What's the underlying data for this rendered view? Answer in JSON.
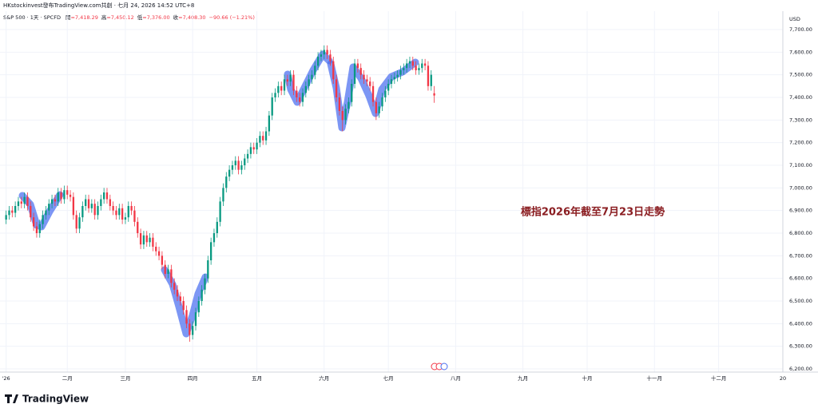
{
  "header": "HKstockinvest發布TradingView.com共創 · 七月 24, 2026 14:52 UTC+8",
  "branding": "TradingView",
  "chart_data": {
    "type": "candlestick",
    "symbol": "S&P 500 · 1天 · SPCFD",
    "legend": [
      {
        "label": "開",
        "value": "=7,418.29"
      },
      {
        "label": "高",
        "value": "=7,450.12"
      },
      {
        "label": "低",
        "value": "=7,376.00"
      },
      {
        "label": "收",
        "value": "=7,408.30"
      }
    ],
    "change": "−90.66 (−1.21%)",
    "currency": "USD",
    "annotation": "標指2026年截至7月23日走勢",
    "up_color": "#089981",
    "down_color": "#f23645",
    "grid": true,
    "xlim": [
      -2,
      254
    ],
    "xticks": [
      {
        "value": 0,
        "label": "'26"
      },
      {
        "value": 20,
        "label": "二月"
      },
      {
        "value": 39,
        "label": "三月"
      },
      {
        "value": 61,
        "label": "四月"
      },
      {
        "value": 82,
        "label": "五月"
      },
      {
        "value": 104,
        "label": "六月"
      },
      {
        "value": 125,
        "label": "七月"
      },
      {
        "value": 147,
        "label": "八月"
      },
      {
        "value": 169,
        "label": "九月"
      },
      {
        "value": 190,
        "label": "十月"
      },
      {
        "value": 212,
        "label": "十一月"
      },
      {
        "value": 233,
        "label": "十二月"
      },
      {
        "value": 254,
        "label": "20"
      }
    ],
    "ylim": [
      6200,
      7700
    ],
    "yticks": [
      {
        "value": 6200,
        "label": "6,200.00"
      },
      {
        "value": 6300,
        "label": "6,300.00"
      },
      {
        "value": 6400,
        "label": "6,400.00"
      },
      {
        "value": 6500,
        "label": "6,500.00"
      },
      {
        "value": 6600,
        "label": "6,600.00"
      },
      {
        "value": 6700,
        "label": "6,700.00"
      },
      {
        "value": 6800,
        "label": "6,800.00"
      },
      {
        "value": 6900,
        "label": "6,900.00"
      },
      {
        "value": 7000,
        "label": "7,000.00"
      },
      {
        "value": 7100,
        "label": "7,100.00"
      },
      {
        "value": 7200,
        "label": "7,200.00"
      },
      {
        "value": 7300,
        "label": "7,300.00"
      },
      {
        "value": 7400,
        "label": "7,400.00"
      },
      {
        "value": 7500,
        "label": "7,500.00"
      },
      {
        "value": 7600,
        "label": "7,600.00"
      },
      {
        "value": 7700,
        "label": "7,700.00"
      }
    ],
    "open": [
      6860,
      6880,
      6900,
      6890,
      6920,
      6940,
      6930,
      6960,
      6920,
      6870,
      6830,
      6800,
      6840,
      6880,
      6900,
      6930,
      6950,
      6940,
      6980,
      6950,
      6990,
      6970,
      6960,
      6880,
      6820,
      6870,
      6920,
      6950,
      6910,
      6930,
      6880,
      6920,
      6950,
      6980,
      6950,
      6920,
      6900,
      6880,
      6910,
      6860,
      6870,
      6920,
      6900,
      6850,
      6800,
      6750,
      6790,
      6760,
      6780,
      6740,
      6720,
      6700,
      6660,
      6620,
      6640,
      6580,
      6550,
      6520,
      6500,
      6460,
      6400,
      6350,
      6390,
      6450,
      6500,
      6550,
      6600,
      6680,
      6760,
      6800,
      6850,
      6940,
      7000,
      7050,
      7080,
      7100,
      7120,
      7080,
      7100,
      7130,
      7150,
      7180,
      7170,
      7200,
      7230,
      7210,
      7250,
      7320,
      7400,
      7420,
      7450,
      7430,
      7480,
      7470,
      7500,
      7430,
      7400,
      7380,
      7420,
      7450,
      7480,
      7500,
      7540,
      7580,
      7590,
      7610,
      7590,
      7560,
      7480,
      7400,
      7340,
      7300,
      7350,
      7380,
      7460,
      7550,
      7530,
      7500,
      7480,
      7470,
      7450,
      7380,
      7330,
      7360,
      7400,
      7430,
      7460,
      7480,
      7490,
      7500,
      7520,
      7530,
      7550,
      7560,
      7540,
      7520,
      7530,
      7550,
      7540,
      7450,
      7418.29
    ],
    "high": [
      6900,
      6920,
      6920,
      6940,
      6960,
      6960,
      6980,
      6980,
      6940,
      6890,
      6850,
      6860,
      6900,
      6920,
      6950,
      6970,
      6970,
      7000,
      7000,
      7010,
      7010,
      6990,
      6980,
      6900,
      6890,
      6940,
      6970,
      6970,
      6950,
      6950,
      6940,
      6970,
      7000,
      7000,
      6970,
      6940,
      6920,
      6930,
      6930,
      6890,
      6940,
      6940,
      6920,
      6870,
      6820,
      6810,
      6810,
      6800,
      6800,
      6760,
      6740,
      6720,
      6680,
      6660,
      6660,
      6600,
      6570,
      6540,
      6520,
      6480,
      6420,
      6410,
      6470,
      6520,
      6570,
      6620,
      6700,
      6780,
      6820,
      6870,
      6960,
      7020,
      7070,
      7100,
      7120,
      7140,
      7140,
      7120,
      7150,
      7170,
      7200,
      7200,
      7220,
      7250,
      7250,
      7270,
      7340,
      7420,
      7440,
      7470,
      7470,
      7500,
      7500,
      7520,
      7520,
      7450,
      7420,
      7440,
      7470,
      7500,
      7520,
      7560,
      7600,
      7610,
      7630,
      7630,
      7610,
      7580,
      7500,
      7420,
      7360,
      7370,
      7400,
      7480,
      7570,
      7570,
      7550,
      7520,
      7500,
      7490,
      7470,
      7400,
      7380,
      7420,
      7450,
      7480,
      7500,
      7510,
      7520,
      7540,
      7550,
      7570,
      7580,
      7580,
      7560,
      7550,
      7570,
      7570,
      7560,
      7520,
      7450.12
    ],
    "low": [
      6840,
      6860,
      6870,
      6870,
      6900,
      6910,
      6910,
      6900,
      6850,
      6810,
      6780,
      6780,
      6820,
      6860,
      6880,
      6910,
      6920,
      6920,
      6930,
      6930,
      6950,
      6940,
      6860,
      6800,
      6800,
      6850,
      6900,
      6890,
      6890,
      6860,
      6860,
      6900,
      6930,
      6930,
      6900,
      6880,
      6860,
      6860,
      6840,
      6840,
      6850,
      6880,
      6830,
      6780,
      6730,
      6730,
      6740,
      6740,
      6720,
      6700,
      6680,
      6640,
      6600,
      6600,
      6560,
      6530,
      6500,
      6480,
      6440,
      6380,
      6320,
      6330,
      6370,
      6430,
      6480,
      6530,
      6580,
      6660,
      6740,
      6780,
      6830,
      6920,
      6980,
      7030,
      7060,
      7080,
      7060,
      7060,
      7080,
      7110,
      7130,
      7150,
      7150,
      7180,
      7190,
      7190,
      7230,
      7300,
      7380,
      7400,
      7410,
      7410,
      7450,
      7450,
      7410,
      7380,
      7360,
      7360,
      7400,
      7430,
      7460,
      7480,
      7520,
      7560,
      7570,
      7570,
      7540,
      7460,
      7380,
      7320,
      7250,
      7280,
      7330,
      7360,
      7440,
      7510,
      7480,
      7460,
      7450,
      7430,
      7360,
      7300,
      7310,
      7340,
      7380,
      7410,
      7440,
      7460,
      7470,
      7480,
      7500,
      7510,
      7530,
      7520,
      7500,
      7500,
      7510,
      7520,
      7430,
      7430,
      7376
    ],
    "close": [
      6880,
      6900,
      6890,
      6920,
      6940,
      6930,
      6960,
      6920,
      6870,
      6830,
      6800,
      6840,
      6880,
      6900,
      6930,
      6950,
      6940,
      6980,
      6950,
      6990,
      6970,
      6960,
      6880,
      6820,
      6870,
      6920,
      6950,
      6910,
      6930,
      6880,
      6920,
      6950,
      6980,
      6950,
      6920,
      6900,
      6880,
      6910,
      6860,
      6870,
      6920,
      6900,
      6850,
      6800,
      6750,
      6790,
      6760,
      6780,
      6740,
      6720,
      6700,
      6660,
      6620,
      6640,
      6580,
      6550,
      6520,
      6500,
      6460,
      6400,
      6350,
      6390,
      6450,
      6500,
      6550,
      6600,
      6680,
      6760,
      6800,
      6850,
      6940,
      7000,
      7050,
      7080,
      7100,
      7120,
      7080,
      7100,
      7130,
      7150,
      7180,
      7170,
      7200,
      7230,
      7210,
      7250,
      7320,
      7400,
      7420,
      7450,
      7430,
      7480,
      7470,
      7500,
      7430,
      7400,
      7380,
      7420,
      7450,
      7480,
      7500,
      7540,
      7580,
      7590,
      7610,
      7590,
      7560,
      7480,
      7400,
      7340,
      7300,
      7350,
      7380,
      7460,
      7550,
      7530,
      7500,
      7480,
      7470,
      7450,
      7380,
      7330,
      7360,
      7400,
      7430,
      7460,
      7480,
      7490,
      7500,
      7520,
      7530,
      7550,
      7560,
      7540,
      7520,
      7530,
      7550,
      7540,
      7450,
      7500,
      7408.3
    ]
  }
}
